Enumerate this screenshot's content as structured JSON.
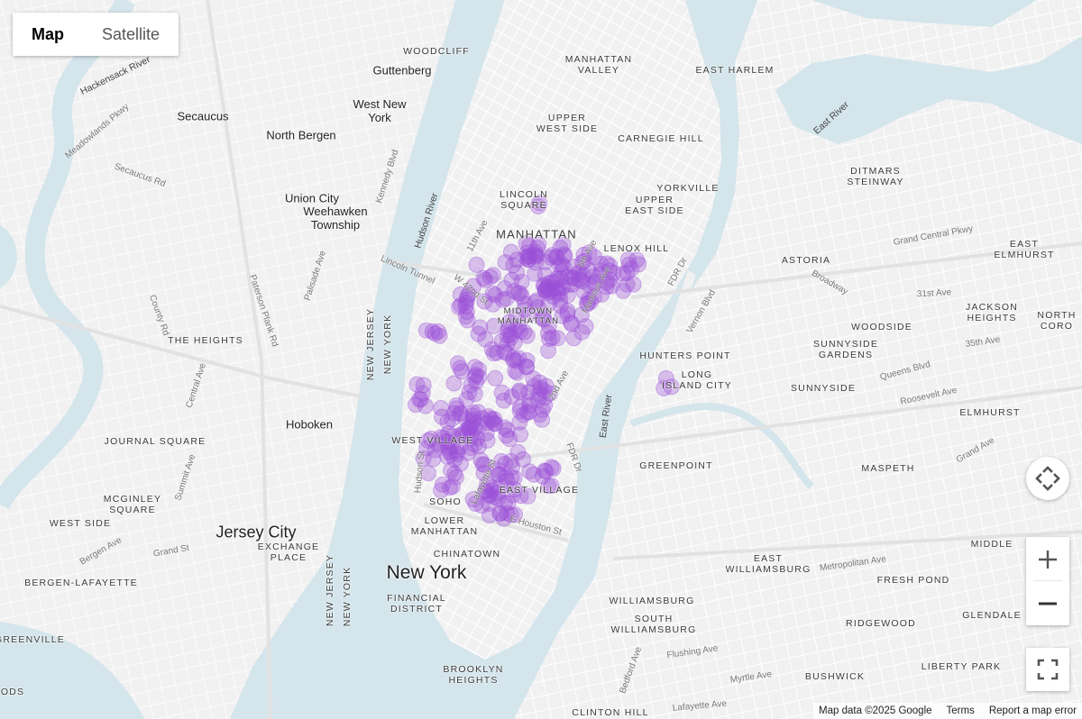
{
  "map_type_control": {
    "options": [
      "Map",
      "Satellite"
    ],
    "selected": "Map"
  },
  "controls": {
    "camera_icon": "camera-control-icon",
    "zoom_in_icon": "plus-icon",
    "zoom_out_icon": "minus-icon",
    "fullscreen_icon": "fullscreen-icon"
  },
  "footer": {
    "attribution": "Map data ©2025 Google",
    "terms": "Terms",
    "report": "Report a map error"
  },
  "colors": {
    "water": "#d4e5ec",
    "land": "#f1f1f1",
    "road": "#ffffff",
    "marker": "#9b4fd8"
  },
  "labels": {
    "neighborhoods": [
      "WOODCLIFF",
      "MANHATTAN\nVALLEY",
      "EAST HARLEM",
      "UPPER\nWEST SIDE",
      "CARNEGIE HILL",
      "DITMARS\nSTEINWAY",
      "LINCOLN\nSQUARE",
      "YORKVILLE",
      "UPPER\nEAST SIDE",
      "MANHATTAN",
      "LENOX HILL",
      "ASTORIA",
      "MIDTOWN\nMANHATTAN",
      "JACKSON\nHEIGHTS",
      "NORTH CORO",
      "WOODSIDE",
      "THE HEIGHTS",
      "HUNTERS POINT",
      "SUNNYSIDE\nGARDENS",
      "LONG\nISLAND CITY",
      "SUNNYSIDE",
      "ELMHURST",
      "JOURNAL SQUARE",
      "WEST VILLAGE",
      "GREENPOINT",
      "MASPETH",
      "MCGINLEY\nSQUARE",
      "EAST VILLAGE",
      "SOHO",
      "WEST SIDE",
      "LOWER\nMANHATTAN",
      "EXCHANGE\nPLACE",
      "CHINATOWN",
      "EAST\nWILLIAMSBURG",
      "FRESH POND",
      "BERGEN-LAFAYETTE",
      "FINANCIAL\nDISTRICT",
      "WILLIAMSBURG",
      "SOUTH\nWILLIAMSBURG",
      "RIDGEWOOD",
      "GLENDALE",
      "GREENVILLE",
      "LIBERTY PARK",
      "BUSHWICK",
      "BROOKLYN\nHEIGHTS",
      "CLINTON HILL",
      "EAST ELMHURST",
      "MIDDLE",
      "ODS"
    ],
    "cities": [
      "Guttenberg",
      "West New\nYork",
      "Secaucus",
      "North Bergen",
      "Union City",
      "Weehawken\nTownship",
      "Hoboken",
      "Jersey City",
      "New York"
    ],
    "water": [
      "Hudson River",
      "East River",
      "East River",
      "Hackensack River",
      "NEW JERSEY",
      "NEW YORK",
      "NEW JERSEY",
      "NEW YORK"
    ],
    "streets": [
      "Lincoln Tunnel",
      "Grand Central Pkwy",
      "W 42nd St",
      "11th Ave",
      "5th Ave",
      "Madison Ave",
      "FDR Dr",
      "FDR Dr",
      "Secaucus Rd",
      "County Rd",
      "Paterson Plank Rd",
      "Palisade Ave",
      "Kennedy Blvd",
      "Central Ave",
      "Summit Ave",
      "Grand St",
      "Bergen Ave",
      "Metropolitan Ave",
      "Flushing Ave",
      "Myrtle Ave",
      "Bedford Ave",
      "Broadway",
      "Queens Blvd",
      "Roosevelt Ave",
      "31st Ave",
      "35th Ave",
      "Vernon Blvd",
      "E Houston St",
      "Hudson St",
      "Lafayette St",
      "2nd Ave",
      "Grand Ave",
      "Meadowlands Pkwy",
      "Lafayette Ave"
    ]
  }
}
